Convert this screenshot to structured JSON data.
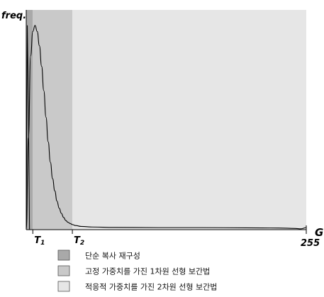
{
  "chart_data": {
    "type": "area",
    "ylabel": "freq.",
    "xlabel": "G",
    "xlim": [
      0,
      255
    ],
    "x_end_label": "255",
    "thresholds": [
      {
        "name": "T1",
        "label": "T",
        "sub": "1",
        "x": 6
      },
      {
        "name": "T2",
        "label": "T",
        "sub": "2",
        "x": 42
      }
    ],
    "regions": [
      {
        "from": 0,
        "to": 6,
        "color": "#a9a9a9",
        "legend": "단순 복사 재구성"
      },
      {
        "from": 6,
        "to": 42,
        "color": "#c9c9c9",
        "legend": "고정 가중치를 가진 1차원 선형 보간법"
      },
      {
        "from": 42,
        "to": 255,
        "color": "#e6e6e6",
        "legend": "적응적 가중치를 가진 2차원 선형 보간법"
      }
    ],
    "curve": {
      "x": [
        0,
        2,
        4,
        6,
        8,
        10,
        12,
        14,
        16,
        18,
        20,
        22,
        24,
        26,
        28,
        30,
        32,
        34,
        36,
        38,
        40,
        42,
        45,
        50,
        60,
        80,
        120,
        160,
        200,
        230,
        245,
        250,
        255
      ],
      "y": [
        0,
        0.45,
        0.85,
        0.97,
        1.0,
        0.97,
        0.9,
        0.8,
        0.68,
        0.55,
        0.43,
        0.33,
        0.25,
        0.19,
        0.14,
        0.105,
        0.08,
        0.06,
        0.045,
        0.036,
        0.03,
        0.025,
        0.02,
        0.016,
        0.013,
        0.011,
        0.01,
        0.01,
        0.009,
        0.008,
        0.006,
        0.004,
        0.01
      ]
    },
    "spike": {
      "x": [
        0,
        1,
        2,
        3
      ],
      "y": [
        0,
        1.0,
        0.6,
        0
      ]
    },
    "ylim": [
      0,
      1.02
    ]
  }
}
